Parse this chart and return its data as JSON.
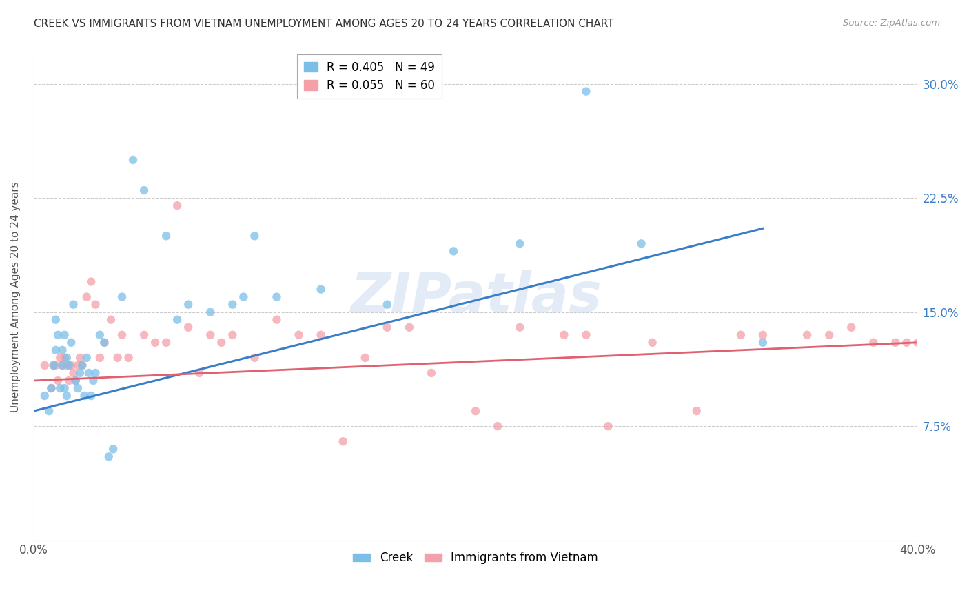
{
  "title": "CREEK VS IMMIGRANTS FROM VIETNAM UNEMPLOYMENT AMONG AGES 20 TO 24 YEARS CORRELATION CHART",
  "source": "Source: ZipAtlas.com",
  "ylabel": "Unemployment Among Ages 20 to 24 years",
  "ytick_labels": [
    "7.5%",
    "15.0%",
    "22.5%",
    "30.0%"
  ],
  "ytick_values": [
    0.075,
    0.15,
    0.225,
    0.3
  ],
  "xlim": [
    0.0,
    0.4
  ],
  "ylim": [
    0.0,
    0.32
  ],
  "creek_color": "#7bbfe8",
  "vietnam_color": "#f4a0a8",
  "creek_line_color": "#3a7dc9",
  "vietnam_line_color": "#e06070",
  "legend_creek_R": "R = 0.405",
  "legend_creek_N": "N = 49",
  "legend_vietnam_R": "R = 0.055",
  "legend_vietnam_N": "N = 60",
  "watermark": "ZIPatlas",
  "creek_scatter_x": [
    0.005,
    0.007,
    0.008,
    0.009,
    0.01,
    0.01,
    0.011,
    0.012,
    0.013,
    0.013,
    0.014,
    0.014,
    0.015,
    0.015,
    0.016,
    0.017,
    0.018,
    0.019,
    0.02,
    0.021,
    0.022,
    0.023,
    0.024,
    0.025,
    0.026,
    0.027,
    0.028,
    0.03,
    0.032,
    0.034,
    0.036,
    0.04,
    0.045,
    0.05,
    0.06,
    0.065,
    0.07,
    0.08,
    0.09,
    0.095,
    0.1,
    0.11,
    0.13,
    0.16,
    0.19,
    0.22,
    0.25,
    0.275,
    0.33
  ],
  "creek_scatter_y": [
    0.095,
    0.085,
    0.1,
    0.115,
    0.145,
    0.125,
    0.135,
    0.1,
    0.115,
    0.125,
    0.1,
    0.135,
    0.12,
    0.095,
    0.115,
    0.13,
    0.155,
    0.105,
    0.1,
    0.11,
    0.115,
    0.095,
    0.12,
    0.11,
    0.095,
    0.105,
    0.11,
    0.135,
    0.13,
    0.055,
    0.06,
    0.16,
    0.25,
    0.23,
    0.2,
    0.145,
    0.155,
    0.15,
    0.155,
    0.16,
    0.2,
    0.16,
    0.165,
    0.155,
    0.19,
    0.195,
    0.295,
    0.195,
    0.13
  ],
  "vietnam_scatter_x": [
    0.005,
    0.008,
    0.009,
    0.01,
    0.011,
    0.012,
    0.013,
    0.014,
    0.015,
    0.016,
    0.017,
    0.018,
    0.019,
    0.02,
    0.021,
    0.022,
    0.024,
    0.026,
    0.028,
    0.03,
    0.032,
    0.035,
    0.038,
    0.04,
    0.043,
    0.05,
    0.055,
    0.06,
    0.065,
    0.07,
    0.075,
    0.08,
    0.085,
    0.09,
    0.1,
    0.11,
    0.12,
    0.13,
    0.14,
    0.15,
    0.16,
    0.17,
    0.18,
    0.2,
    0.21,
    0.22,
    0.24,
    0.25,
    0.26,
    0.28,
    0.3,
    0.32,
    0.33,
    0.35,
    0.36,
    0.37,
    0.38,
    0.39,
    0.395,
    0.4
  ],
  "vietnam_scatter_y": [
    0.115,
    0.1,
    0.115,
    0.115,
    0.105,
    0.12,
    0.115,
    0.12,
    0.115,
    0.105,
    0.115,
    0.11,
    0.105,
    0.115,
    0.12,
    0.115,
    0.16,
    0.17,
    0.155,
    0.12,
    0.13,
    0.145,
    0.12,
    0.135,
    0.12,
    0.135,
    0.13,
    0.13,
    0.22,
    0.14,
    0.11,
    0.135,
    0.13,
    0.135,
    0.12,
    0.145,
    0.135,
    0.135,
    0.065,
    0.12,
    0.14,
    0.14,
    0.11,
    0.085,
    0.075,
    0.14,
    0.135,
    0.135,
    0.075,
    0.13,
    0.085,
    0.135,
    0.135,
    0.135,
    0.135,
    0.14,
    0.13,
    0.13,
    0.13,
    0.13
  ],
  "creek_line_x": [
    0.0,
    0.33
  ],
  "creek_line_y": [
    0.085,
    0.205
  ],
  "vietnam_line_x": [
    0.0,
    0.4
  ],
  "vietnam_line_y": [
    0.105,
    0.13
  ]
}
